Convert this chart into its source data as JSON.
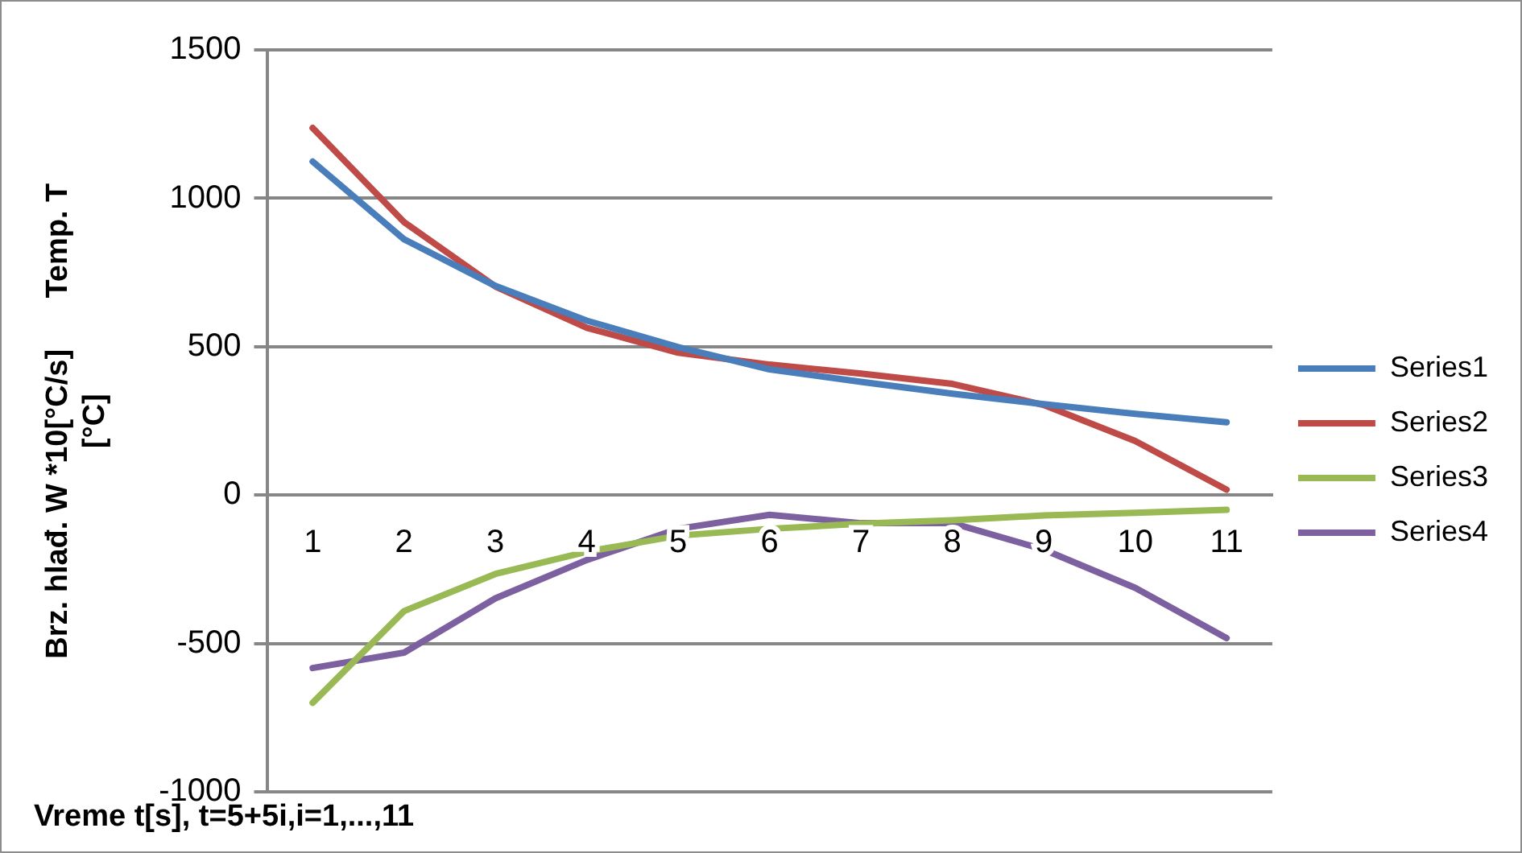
{
  "chart_data": {
    "type": "line",
    "xlabel": "Vreme t[s], t=5+5i,i=1,...,11",
    "ylabel": "Brz. hlađ. W *10[°C/s]      Temp. T\n[°C]",
    "categories": [
      "1",
      "2",
      "3",
      "4",
      "5",
      "6",
      "7",
      "8",
      "9",
      "10",
      "11"
    ],
    "series": [
      {
        "name": "Series1",
        "color": "#4a7ebb",
        "values": [
          1124,
          862,
          705,
          588,
          499,
          424,
          382,
          342,
          307,
          274,
          246
        ]
      },
      {
        "name": "Series2",
        "color": "#be4b48",
        "values": [
          1237,
          920,
          703,
          564,
          480,
          440,
          410,
          375,
          304,
          183,
          19
        ]
      },
      {
        "name": "Series3",
        "color": "#98b954",
        "values": [
          -699,
          -390,
          -265,
          -190,
          -136,
          -113,
          -96,
          -84,
          -68,
          -59,
          -49
        ]
      },
      {
        "name": "Series4",
        "color": "#7d60a0",
        "values": [
          -582,
          -530,
          -347,
          -218,
          -113,
          -66,
          -94,
          -94,
          -183,
          -312,
          -481
        ]
      }
    ],
    "ylim": [
      -1000,
      1500
    ],
    "yticks": [
      -1000,
      -500,
      0,
      500,
      1000,
      1500
    ],
    "grid": "y",
    "legend": "right",
    "marker": "none",
    "line_style": "solid"
  }
}
